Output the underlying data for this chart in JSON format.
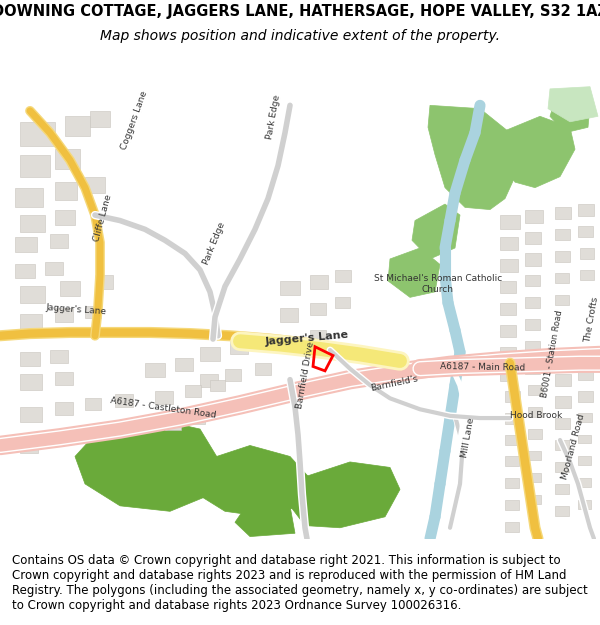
{
  "title_line1": "DOWNING COTTAGE, JAGGERS LANE, HATHERSAGE, HOPE VALLEY, S32 1AZ",
  "title_line2": "Map shows position and indicative extent of the property.",
  "footer_text": "Contains OS data © Crown copyright and database right 2021. This information is subject to Crown copyright and database rights 2023 and is reproduced with the permission of HM Land Registry. The polygons (including the associated geometry, namely x, y co-ordinates) are subject to Crown copyright and database rights 2023 Ordnance Survey 100026316.",
  "bg_color": "#ffffff",
  "map_bg": "#f5f3f0",
  "title_fontsize": 10.5,
  "subtitle_fontsize": 10,
  "footer_fontsize": 8.5,
  "road_major_color": "#f5c0b8",
  "road_minor_color": "#ffffff",
  "road_yellow_color": "#f5d87a",
  "water_color": "#aad3df",
  "green_color": "#8dc46e",
  "green_dark_color": "#6aaa3a",
  "building_color": "#e0ddd8",
  "building_outline": "#c8c4be",
  "marker_color": "#ff0000"
}
